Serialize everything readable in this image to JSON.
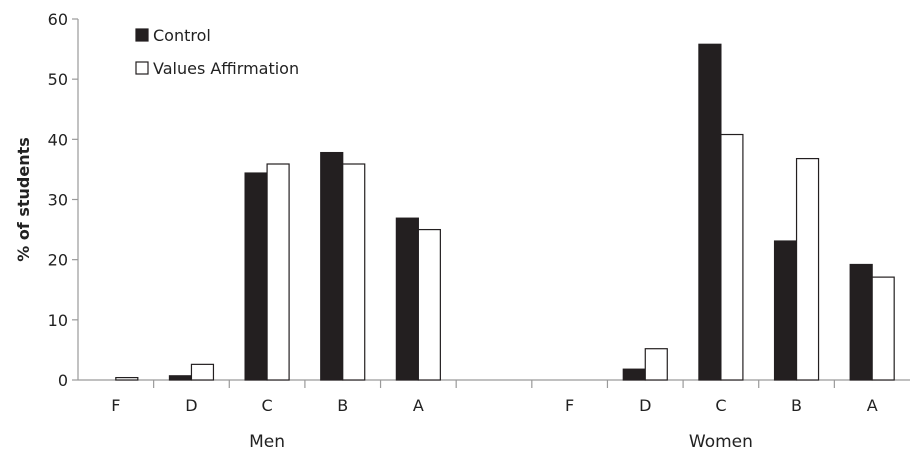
{
  "chart_data": {
    "type": "bar",
    "ylabel": "% of students",
    "ylim": [
      0,
      60
    ],
    "yticks": [
      0,
      10,
      20,
      30,
      40,
      50,
      60
    ],
    "grid": false,
    "legend_position": "top-left",
    "groups": [
      {
        "name": "Men",
        "categories": [
          "F",
          "D",
          "C",
          "B",
          "A"
        ]
      },
      {
        "name": "Women",
        "categories": [
          "F",
          "D",
          "C",
          "B",
          "A"
        ]
      }
    ],
    "series": [
      {
        "name": "Control",
        "color": "#231f20",
        "values": {
          "Men": [
            0,
            0.7,
            34.4,
            37.8,
            26.9
          ],
          "Women": [
            0,
            1.8,
            55.8,
            23.1,
            19.2
          ]
        }
      },
      {
        "name": "Values Affirmation",
        "color": "#ffffff",
        "values": {
          "Men": [
            0.4,
            2.6,
            35.9,
            35.9,
            25.0
          ],
          "Women": [
            0,
            5.2,
            40.8,
            36.8,
            17.1
          ]
        }
      }
    ]
  }
}
